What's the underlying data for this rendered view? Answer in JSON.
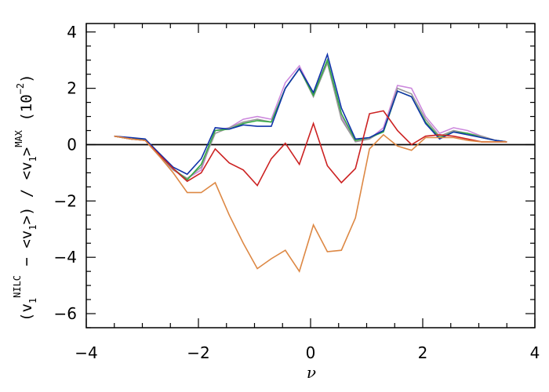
{
  "chart_data": {
    "type": "line",
    "xlabel": "ν",
    "ylabel": {
      "open_paren": "(v",
      "sub1": "1",
      "sup_nilc": "NILC",
      "minus_mean": " − <v",
      "sub2": "1",
      "close1": ">) / <v",
      "sub3": "1",
      "close2": ">",
      "sup_max": "MAX",
      "scale": " (10",
      "scale_exp": "−2",
      "scale_close": ")"
    },
    "xlim": [
      -4,
      4
    ],
    "ylim": [
      -6.5,
      4.3
    ],
    "x_ticks": [
      -4,
      -2,
      0,
      2,
      4
    ],
    "y_ticks": [
      -6,
      -4,
      -2,
      0,
      2,
      4
    ],
    "x_tick_labels": [
      "−4",
      "−2",
      "0",
      "2",
      "4"
    ],
    "y_tick_labels": [
      "−6",
      "−4",
      "−2",
      "0",
      "2",
      "4"
    ],
    "grid": false,
    "reference_line_y": 0,
    "x": [
      -3.5,
      -3.2,
      -2.95,
      -2.7,
      -2.45,
      -2.2,
      -1.95,
      -1.7,
      -1.45,
      -1.2,
      -0.95,
      -0.7,
      -0.45,
      -0.2,
      0.05,
      0.3,
      0.55,
      0.8,
      1.05,
      1.3,
      1.55,
      1.8,
      2.05,
      2.3,
      2.55,
      2.8,
      3.05,
      3.3,
      3.5
    ],
    "series": [
      {
        "color": "#cc88dd",
        "values": [
          0.3,
          0.2,
          0.15,
          -0.4,
          -0.9,
          -1.2,
          -0.9,
          0.5,
          0.6,
          0.9,
          1.0,
          0.9,
          2.2,
          2.8,
          1.8,
          3.0,
          1.0,
          0.1,
          0.2,
          0.6,
          2.1,
          2.0,
          1.0,
          0.4,
          0.6,
          0.5,
          0.3,
          0.15,
          0.1
        ]
      },
      {
        "color": "#999999",
        "values": [
          0.3,
          0.2,
          0.15,
          -0.4,
          -0.9,
          -1.2,
          -0.8,
          0.4,
          0.6,
          0.8,
          0.9,
          0.8,
          2.0,
          2.7,
          1.7,
          2.9,
          0.9,
          0.1,
          0.2,
          0.5,
          2.0,
          1.8,
          0.9,
          0.3,
          0.5,
          0.4,
          0.3,
          0.15,
          0.1
        ]
      },
      {
        "color": "#33aa44",
        "values": [
          0.3,
          0.2,
          0.2,
          -0.35,
          -0.85,
          -1.25,
          -0.7,
          0.5,
          0.55,
          0.75,
          0.85,
          0.8,
          2.0,
          2.7,
          1.75,
          3.0,
          1.1,
          0.15,
          0.25,
          0.45,
          1.9,
          1.7,
          0.8,
          0.25,
          0.45,
          0.4,
          0.25,
          0.15,
          0.1
        ]
      },
      {
        "color": "#1133aa",
        "values": [
          0.3,
          0.25,
          0.2,
          -0.3,
          -0.8,
          -1.05,
          -0.5,
          0.6,
          0.55,
          0.7,
          0.65,
          0.65,
          2.0,
          2.7,
          1.85,
          3.2,
          1.3,
          0.2,
          0.25,
          0.5,
          1.9,
          1.7,
          0.75,
          0.2,
          0.45,
          0.35,
          0.25,
          0.15,
          0.1
        ]
      },
      {
        "color": "#cc2222",
        "values": [
          0.3,
          0.2,
          0.15,
          -0.35,
          -0.85,
          -1.3,
          -1.0,
          -0.15,
          -0.65,
          -0.9,
          -1.45,
          -0.5,
          0.05,
          -0.7,
          0.75,
          -0.75,
          -1.35,
          -0.85,
          1.1,
          1.2,
          0.5,
          0.0,
          0.3,
          0.35,
          0.3,
          0.2,
          0.1,
          0.1,
          0.1
        ]
      },
      {
        "color": "#dd8844",
        "values": [
          0.3,
          0.2,
          0.15,
          -0.4,
          -1.0,
          -1.7,
          -1.7,
          -1.35,
          -2.5,
          -3.5,
          -4.4,
          -4.05,
          -3.75,
          -4.5,
          -2.85,
          -3.8,
          -3.75,
          -2.6,
          -0.15,
          0.35,
          -0.05,
          -0.2,
          0.25,
          0.25,
          0.25,
          0.15,
          0.1,
          0.1,
          0.1
        ]
      }
    ]
  }
}
